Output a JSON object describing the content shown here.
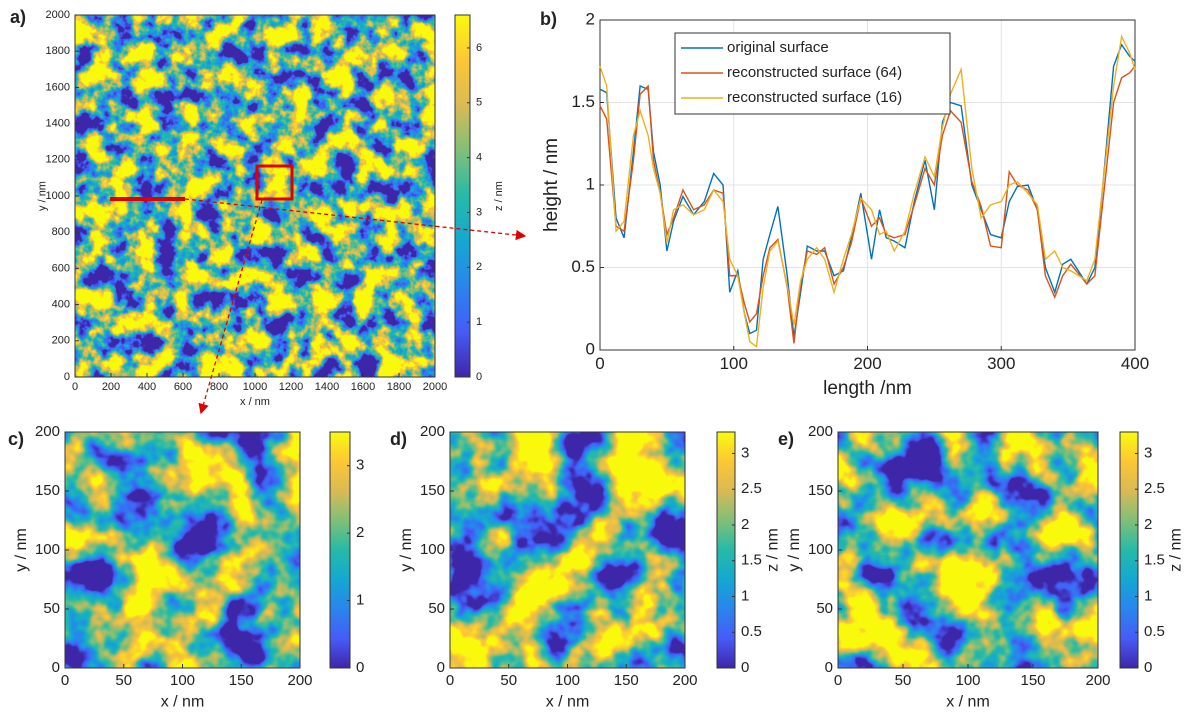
{
  "chart_data": [
    {
      "type": "heatmap",
      "panel_label": "a)",
      "xlabel": "x / nm",
      "ylabel": "y / nm",
      "colorbar_label": "z / nm",
      "xlim": [
        0,
        2000
      ],
      "ylim": [
        0,
        2000
      ],
      "xticks": [
        0,
        200,
        400,
        600,
        800,
        1000,
        1200,
        1400,
        1600,
        1800,
        2000
      ],
      "yticks": [
        0,
        200,
        400,
        600,
        800,
        1000,
        1200,
        1400,
        1600,
        1800,
        2000
      ],
      "clim": [
        0,
        6.6
      ],
      "cticks": [
        0,
        1,
        2,
        3,
        4,
        5,
        6
      ]
    },
    {
      "type": "line",
      "panel_label": "b)",
      "xlabel": "length /nm",
      "ylabel": "height / nm",
      "xlim": [
        0,
        400
      ],
      "ylim": [
        0,
        2
      ],
      "xticks": [
        0,
        100,
        200,
        300,
        400
      ],
      "yticks": [
        0,
        0.5,
        1,
        1.5,
        2
      ],
      "grid": true,
      "x": [
        0,
        5,
        12,
        18,
        25,
        30,
        36,
        40,
        45,
        50,
        55,
        62,
        70,
        78,
        85,
        92,
        97,
        103,
        108,
        112,
        117,
        122,
        127,
        133,
        140,
        145,
        150,
        155,
        162,
        168,
        175,
        182,
        188,
        195,
        203,
        209,
        214,
        220,
        228,
        235,
        243,
        250,
        256,
        262,
        270,
        278,
        285,
        292,
        300,
        306,
        312,
        320,
        327,
        333,
        340,
        346,
        352,
        364,
        370,
        376,
        384,
        390,
        396,
        400
      ],
      "series": [
        {
          "name": "original surface",
          "color": "#0072bd",
          "values": [
            1.58,
            1.56,
            0.8,
            0.68,
            1.2,
            1.6,
            1.58,
            1.2,
            1.0,
            0.6,
            0.78,
            0.93,
            0.82,
            0.9,
            1.07,
            1.0,
            0.35,
            0.48,
            0.22,
            0.1,
            0.12,
            0.55,
            0.7,
            0.87,
            0.45,
            0.08,
            0.35,
            0.63,
            0.6,
            0.6,
            0.45,
            0.48,
            0.68,
            0.95,
            0.55,
            0.85,
            0.68,
            0.66,
            0.62,
            0.9,
            1.15,
            0.85,
            1.38,
            1.5,
            1.48,
            1.0,
            0.85,
            0.7,
            0.68,
            0.9,
            0.99,
            1.0,
            0.85,
            0.5,
            0.35,
            0.52,
            0.55,
            0.4,
            0.5,
            1.0,
            1.72,
            1.85,
            1.78,
            1.75
          ]
        },
        {
          "name": "reconstructed surface (64)",
          "color": "#d95319",
          "values": [
            1.48,
            1.4,
            0.75,
            0.72,
            1.15,
            1.55,
            1.6,
            1.15,
            0.95,
            0.7,
            0.8,
            0.97,
            0.85,
            0.88,
            0.97,
            0.95,
            0.45,
            0.45,
            0.28,
            0.17,
            0.22,
            0.45,
            0.62,
            0.67,
            0.38,
            0.04,
            0.4,
            0.6,
            0.58,
            0.62,
            0.4,
            0.5,
            0.65,
            0.92,
            0.75,
            0.8,
            0.7,
            0.68,
            0.7,
            0.88,
            1.1,
            1.0,
            1.3,
            1.45,
            1.38,
            1.02,
            0.87,
            0.63,
            0.62,
            1.08,
            1.0,
            0.97,
            0.85,
            0.45,
            0.32,
            0.45,
            0.52,
            0.4,
            0.45,
            0.9,
            1.5,
            1.65,
            1.68,
            1.72
          ]
        },
        {
          "name": "reconstructed surface (16)",
          "color": "#edb120",
          "values": [
            1.72,
            1.6,
            0.72,
            0.78,
            1.3,
            1.45,
            1.3,
            1.1,
            0.95,
            0.65,
            0.85,
            0.88,
            0.82,
            0.85,
            0.97,
            0.9,
            0.55,
            0.45,
            0.22,
            0.05,
            0.02,
            0.38,
            0.6,
            0.66,
            0.39,
            0.15,
            0.42,
            0.55,
            0.62,
            0.55,
            0.35,
            0.55,
            0.7,
            0.92,
            0.85,
            0.7,
            0.72,
            0.6,
            0.72,
            0.95,
            1.17,
            1.05,
            1.35,
            1.55,
            1.7,
            1.1,
            0.8,
            0.88,
            0.9,
            1.0,
            1.02,
            0.95,
            0.88,
            0.55,
            0.6,
            0.5,
            0.48,
            0.42,
            0.55,
            1.0,
            1.6,
            1.9,
            1.8,
            1.7
          ]
        }
      ]
    },
    {
      "type": "heatmap",
      "panel_label": "c)",
      "xlabel": "x / nm",
      "ylabel": "y / nm",
      "xlim": [
        0,
        200
      ],
      "ylim": [
        0,
        200
      ],
      "xticks": [
        0,
        50,
        100,
        150,
        200
      ],
      "yticks": [
        0,
        50,
        100,
        150,
        200
      ],
      "clim": [
        0,
        3.5
      ],
      "cticks": [
        0,
        1,
        2,
        3
      ]
    },
    {
      "type": "heatmap",
      "panel_label": "d)",
      "xlabel": "x / nm",
      "ylabel": "y / nm",
      "colorbar_label": "z / nm",
      "xlim": [
        0,
        200
      ],
      "ylim": [
        0,
        200
      ],
      "xticks": [
        0,
        50,
        100,
        150,
        200
      ],
      "yticks": [
        0,
        50,
        100,
        150,
        200
      ],
      "clim": [
        0,
        3.3
      ],
      "cticks": [
        0,
        0.5,
        1,
        1.5,
        2,
        2.5,
        3
      ]
    },
    {
      "type": "heatmap",
      "panel_label": "e)",
      "xlabel": "x / nm",
      "ylabel": "y / nm",
      "colorbar_label": "z / nm",
      "xlim": [
        0,
        200
      ],
      "ylim": [
        0,
        200
      ],
      "xticks": [
        0,
        50,
        100,
        150,
        200
      ],
      "yticks": [
        0,
        50,
        100,
        150,
        200
      ],
      "clim": [
        0,
        3.3
      ],
      "cticks": [
        0,
        0.5,
        1,
        1.5,
        2,
        2.5,
        3
      ]
    }
  ]
}
